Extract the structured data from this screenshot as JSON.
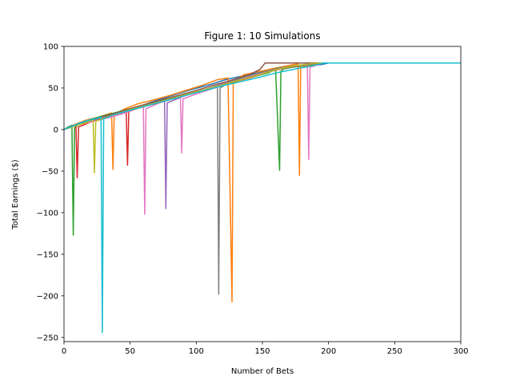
{
  "chart_data": {
    "type": "line",
    "title": "Figure 1: 10 Simulations",
    "xlabel": "Number of Bets",
    "ylabel": "Total Earnings ($)",
    "xlim": [
      0,
      300
    ],
    "ylim": [
      -255,
      100
    ],
    "xticks": [
      0,
      50,
      100,
      150,
      200,
      250,
      300
    ],
    "yticks": [
      -250,
      -200,
      -150,
      -100,
      -50,
      0,
      50,
      100
    ],
    "grid": false,
    "legend": "none",
    "series": [
      {
        "color": "#1f77b4",
        "x": [
          0,
          4,
          10,
          18,
          26,
          34,
          44,
          56,
          66,
          76,
          86,
          96,
          110,
          122,
          134,
          146,
          152,
          162,
          172,
          180,
          188,
          194,
          200,
          300
        ],
        "y": [
          0,
          3,
          6,
          10,
          13,
          16,
          21,
          27,
          33,
          38,
          43,
          48,
          54,
          60,
          64,
          68,
          71,
          73,
          75,
          76,
          77,
          78,
          80,
          80
        ]
      },
      {
        "color": "#ff7f0e",
        "x": [
          0,
          8,
          16,
          26,
          36,
          37,
          38,
          46,
          56,
          66,
          80,
          92,
          104,
          116,
          124,
          127,
          128,
          136,
          148,
          160,
          170,
          177,
          178,
          179,
          190,
          196,
          300
        ],
        "y": [
          0,
          6,
          11,
          15,
          20,
          -48,
          18,
          25,
          31,
          35,
          41,
          47,
          53,
          60,
          62,
          -207,
          58,
          66,
          70,
          74,
          77,
          79,
          -55,
          76,
          78,
          80,
          80
        ]
      },
      {
        "color": "#2ca02c",
        "x": [
          0,
          3,
          6,
          7,
          8,
          14,
          24,
          38,
          52,
          66,
          80,
          96,
          112,
          128,
          142,
          154,
          160,
          163,
          164,
          166,
          176,
          186,
          196,
          300
        ],
        "y": [
          0,
          3,
          5,
          -127,
          2,
          9,
          14,
          20,
          26,
          31,
          37,
          43,
          50,
          57,
          63,
          68,
          72,
          -49,
          70,
          73,
          76,
          78,
          80,
          80
        ]
      },
      {
        "color": "#d62728",
        "x": [
          0,
          6,
          9,
          10,
          11,
          20,
          30,
          40,
          47,
          48,
          49,
          60,
          80,
          100,
          120,
          140,
          156,
          170,
          182,
          196,
          300
        ],
        "y": [
          0,
          3,
          6,
          -58,
          3,
          9,
          14,
          19,
          24,
          -43,
          22,
          29,
          37,
          45,
          54,
          62,
          70,
          75,
          78,
          80,
          80
        ]
      },
      {
        "color": "#9467bd",
        "x": [
          0,
          12,
          24,
          40,
          56,
          70,
          76,
          77,
          78,
          90,
          104,
          118,
          132,
          148,
          160,
          172,
          186,
          196,
          300
        ],
        "y": [
          0,
          8,
          13,
          19,
          26,
          33,
          36,
          -95,
          32,
          40,
          47,
          54,
          60,
          66,
          72,
          76,
          79,
          80,
          80
        ]
      },
      {
        "color": "#8c564b",
        "x": [
          0,
          14,
          28,
          42,
          56,
          70,
          84,
          98,
          112,
          126,
          140,
          148,
          152,
          300
        ],
        "y": [
          0,
          9,
          15,
          21,
          28,
          34,
          40,
          46,
          53,
          59,
          66,
          72,
          80,
          80
        ]
      },
      {
        "color": "#e377c2",
        "x": [
          0,
          10,
          22,
          36,
          50,
          60,
          61,
          62,
          72,
          86,
          88,
          89,
          90,
          104,
          118,
          132,
          146,
          160,
          172,
          184,
          185,
          186,
          196,
          300
        ],
        "y": [
          0,
          5,
          10,
          15,
          22,
          28,
          -102,
          25,
          32,
          39,
          40,
          -28,
          37,
          45,
          52,
          60,
          66,
          72,
          76,
          78,
          -36,
          75,
          80,
          80
        ]
      },
      {
        "color": "#7f7f7f",
        "x": [
          0,
          10,
          22,
          36,
          50,
          64,
          78,
          92,
          106,
          116,
          117,
          118,
          124,
          136,
          150,
          162,
          176,
          190,
          196,
          300
        ],
        "y": [
          0,
          7,
          12,
          17,
          23,
          29,
          35,
          41,
          47,
          52,
          -198,
          50,
          56,
          63,
          69,
          74,
          77,
          79,
          80,
          80
        ]
      },
      {
        "color": "#bcbd22",
        "x": [
          0,
          8,
          18,
          22,
          23,
          24,
          36,
          50,
          64,
          78,
          92,
          106,
          120,
          134,
          148,
          160,
          172,
          186,
          196,
          300
        ],
        "y": [
          0,
          4,
          9,
          12,
          -52,
          10,
          17,
          24,
          30,
          36,
          42,
          48,
          54,
          60,
          66,
          72,
          76,
          79,
          80,
          80
        ]
      },
      {
        "color": "#17becf",
        "x": [
          0,
          8,
          16,
          26,
          28,
          29,
          30,
          40,
          54,
          68,
          80,
          92,
          104,
          118,
          132,
          148,
          160,
          172,
          186,
          196,
          300
        ],
        "y": [
          0,
          5,
          10,
          14,
          15,
          -244,
          13,
          19,
          25,
          31,
          36,
          41,
          46,
          52,
          57,
          63,
          68,
          72,
          76,
          80,
          80
        ]
      }
    ]
  }
}
